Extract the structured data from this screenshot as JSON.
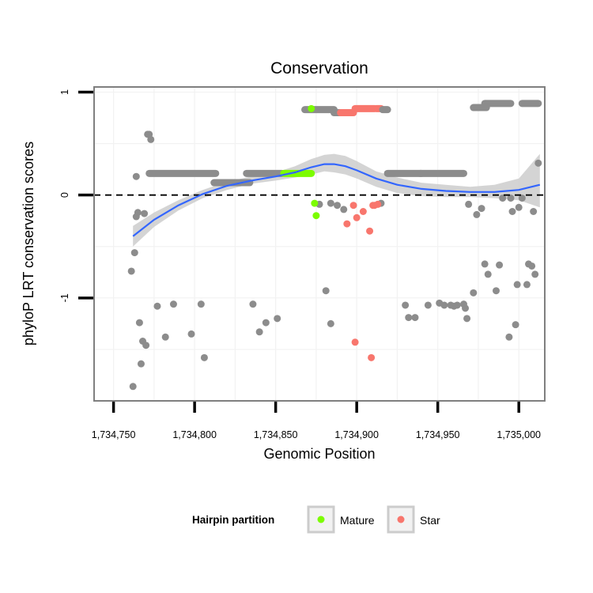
{
  "chart_data": {
    "type": "scatter",
    "title": "Conservation",
    "xlabel": "Genomic Position",
    "ylabel": "phyloP LRT conservation scores",
    "xlim": [
      1734738,
      1735016
    ],
    "ylim": [
      -2.0,
      1.05
    ],
    "x_ticks": [
      {
        "value": 1734750,
        "label": "1,734,750"
      },
      {
        "value": 1734800,
        "label": "1,734,800"
      },
      {
        "value": 1734850,
        "label": "1,734,850"
      },
      {
        "value": 1734900,
        "label": "1,734,900"
      },
      {
        "value": 1734950,
        "label": "1,734,950"
      },
      {
        "value": 1735000,
        "label": "1,735,000"
      }
    ],
    "y_ticks": [
      {
        "value": 1,
        "label": "1"
      },
      {
        "value": 0,
        "label": "0"
      },
      {
        "value": -1,
        "label": "-1"
      }
    ],
    "reference_line": {
      "y": 0,
      "style": "dashed"
    },
    "legend": {
      "title": "Hairpin partition",
      "position": "bottom",
      "entries": [
        {
          "name": "Mature",
          "color": "#7cfc00"
        },
        {
          "name": "Star",
          "color": "#f8766d"
        }
      ]
    },
    "colors": {
      "other": "#8c8c8c",
      "mature": "#7cfc00",
      "star": "#f8766d",
      "smooth": "#3366ff",
      "band": "#cccccc",
      "panel": "#ffffff",
      "grid": "#f2f2f2",
      "border": "#7f7f7f"
    },
    "series": [
      {
        "name": "Other",
        "color": "#8c8c8c",
        "points": [
          [
            1734761,
            -0.74
          ],
          [
            1734762,
            -1.86
          ],
          [
            1734763,
            -0.56
          ],
          [
            1734764,
            -0.21
          ],
          [
            1734764,
            0.18
          ],
          [
            1734765,
            -0.17
          ],
          [
            1734766,
            -1.24
          ],
          [
            1734767,
            -1.64
          ],
          [
            1734768,
            -1.42
          ],
          [
            1734769,
            -0.18
          ],
          [
            1734770,
            -1.46
          ],
          [
            1734771,
            0.59
          ],
          [
            1734772,
            0.59
          ],
          [
            1734773,
            0.54
          ],
          [
            1734777,
            -1.08
          ],
          [
            1734782,
            -1.38
          ],
          [
            1734787,
            -1.06
          ],
          [
            1734798,
            -1.35
          ],
          [
            1734804,
            -1.06
          ],
          [
            1734806,
            -1.58
          ],
          [
            1734836,
            -1.06
          ],
          [
            1734840,
            -1.33
          ],
          [
            1734844,
            -1.24
          ],
          [
            1734851,
            -1.2
          ],
          [
            1734877,
            -0.09
          ],
          [
            1734881,
            -0.93
          ],
          [
            1734884,
            -1.25
          ],
          [
            1734884,
            -0.08
          ],
          [
            1734888,
            -0.1
          ],
          [
            1734892,
            -0.14
          ],
          [
            1734915,
            -0.08
          ],
          [
            1734930,
            -1.07
          ],
          [
            1734932,
            -1.19
          ],
          [
            1734936,
            -1.19
          ],
          [
            1734944,
            -1.07
          ],
          [
            1734951,
            -1.05
          ],
          [
            1734954,
            -1.07
          ],
          [
            1734958,
            -1.07
          ],
          [
            1734960,
            -1.08
          ],
          [
            1734962,
            -1.07
          ],
          [
            1734966,
            -1.06
          ],
          [
            1734967,
            -1.1
          ],
          [
            1734968,
            -1.2
          ],
          [
            1734969,
            -0.09
          ],
          [
            1734972,
            -0.95
          ],
          [
            1734974,
            -0.19
          ],
          [
            1734977,
            -0.13
          ],
          [
            1734979,
            -0.67
          ],
          [
            1734981,
            -0.77
          ],
          [
            1734986,
            -0.93
          ],
          [
            1734988,
            -0.68
          ],
          [
            1734990,
            -0.03
          ],
          [
            1734994,
            -1.38
          ],
          [
            1734995,
            -0.03
          ],
          [
            1734996,
            -0.16
          ],
          [
            1734998,
            -1.26
          ],
          [
            1734999,
            -0.87
          ],
          [
            1735000,
            -0.12
          ],
          [
            1735002,
            -0.03
          ],
          [
            1735005,
            -0.87
          ],
          [
            1735006,
            -0.67
          ],
          [
            1735008,
            -0.69
          ],
          [
            1735009,
            -0.16
          ],
          [
            1735010,
            -0.77
          ],
          [
            1735012,
            0.31
          ]
        ]
      },
      {
        "name": "Mature",
        "color": "#7cfc00",
        "points": [
          [
            1734872,
            0.84
          ],
          [
            1734874,
            -0.08
          ],
          [
            1734875,
            -0.2
          ]
        ]
      },
      {
        "name": "Star",
        "color": "#f8766d",
        "points": [
          [
            1734894,
            -0.28
          ],
          [
            1734898,
            -0.1
          ],
          [
            1734899,
            -1.43
          ],
          [
            1734900,
            -0.22
          ],
          [
            1734904,
            -0.16
          ],
          [
            1734908,
            -0.35
          ],
          [
            1734909,
            -1.58
          ],
          [
            1734910,
            -0.1
          ],
          [
            1734911,
            -0.1
          ],
          [
            1734913,
            -0.09
          ]
        ]
      }
    ],
    "segments": [
      {
        "group": "Other",
        "x_from": 1734772,
        "x_to": 1734813,
        "y": 0.21
      },
      {
        "group": "Other",
        "x_from": 1734812,
        "x_to": 1734834,
        "y": 0.12
      },
      {
        "group": "Other",
        "x_from": 1734832,
        "x_to": 1734854,
        "y": 0.21
      },
      {
        "group": "Mature",
        "x_from": 1734855,
        "x_to": 1734872,
        "y": 0.21
      },
      {
        "group": "Other",
        "x_from": 1734868,
        "x_to": 1734886,
        "y": 0.83
      },
      {
        "group": "Other",
        "x_from": 1734886,
        "x_to": 1734897,
        "y": 0.8
      },
      {
        "group": "Star",
        "x_from": 1734890,
        "x_to": 1734898,
        "y": 0.8
      },
      {
        "group": "Star",
        "x_from": 1734899,
        "x_to": 1734911,
        "y": 0.84
      },
      {
        "group": "Star",
        "x_from": 1734912,
        "x_to": 1734915,
        "y": 0.84
      },
      {
        "group": "Other",
        "x_from": 1734916,
        "x_to": 1734919,
        "y": 0.83
      },
      {
        "group": "Other",
        "x_from": 1734919,
        "x_to": 1734940,
        "y": 0.21
      },
      {
        "group": "Other",
        "x_from": 1734939,
        "x_to": 1734966,
        "y": 0.21
      },
      {
        "group": "Other",
        "x_from": 1734972,
        "x_to": 1734980,
        "y": 0.85
      },
      {
        "group": "Other",
        "x_from": 1734979,
        "x_to": 1734995,
        "y": 0.89
      },
      {
        "group": "Other",
        "x_from": 1735002,
        "x_to": 1735012,
        "y": 0.89
      }
    ],
    "smooth": {
      "x": [
        1734762,
        1734775,
        1734790,
        1734805,
        1734820,
        1734835,
        1734850,
        1734862,
        1734872,
        1734880,
        1734886,
        1734893,
        1734900,
        1734912,
        1734925,
        1734940,
        1734955,
        1734970,
        1734985,
        1735000,
        1735013
      ],
      "y": [
        -0.4,
        -0.24,
        -0.1,
        0.01,
        0.09,
        0.14,
        0.18,
        0.22,
        0.27,
        0.3,
        0.3,
        0.28,
        0.24,
        0.16,
        0.1,
        0.06,
        0.04,
        0.03,
        0.03,
        0.05,
        0.1
      ],
      "lower": [
        -0.5,
        -0.31,
        -0.15,
        -0.03,
        0.05,
        0.11,
        0.14,
        0.17,
        0.2,
        0.23,
        0.22,
        0.2,
        0.16,
        0.08,
        0.02,
        -0.01,
        -0.02,
        -0.02,
        -0.03,
        -0.05,
        -0.12
      ],
      "upper": [
        -0.3,
        -0.17,
        -0.05,
        0.05,
        0.13,
        0.18,
        0.22,
        0.28,
        0.35,
        0.39,
        0.4,
        0.38,
        0.33,
        0.23,
        0.17,
        0.12,
        0.1,
        0.08,
        0.1,
        0.16,
        0.4
      ]
    }
  }
}
